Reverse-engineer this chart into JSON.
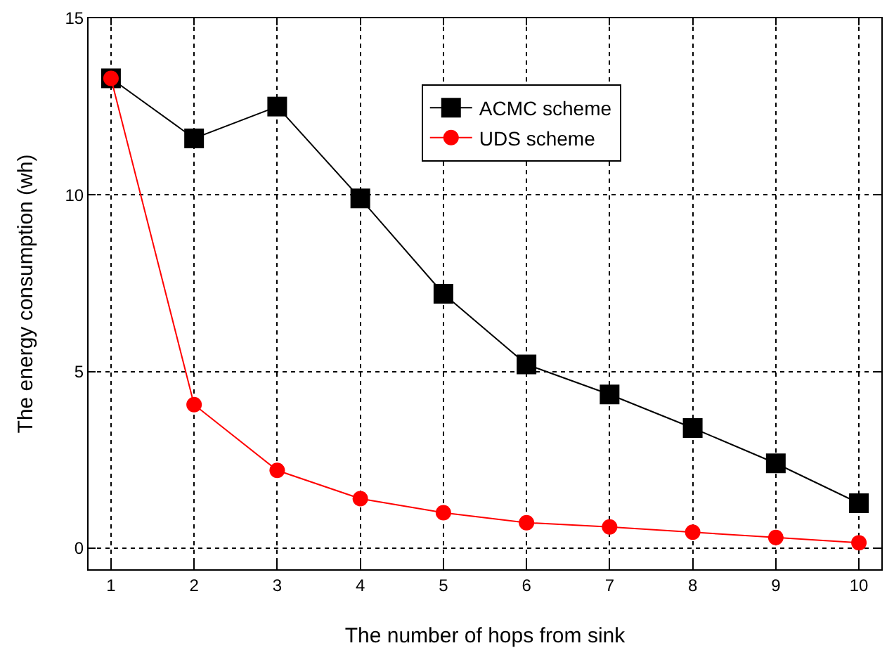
{
  "chart_data": {
    "type": "line",
    "xlabel": "The number of hops from sink",
    "ylabel": "The energy consumption (wh)",
    "x": [
      1,
      2,
      3,
      4,
      5,
      6,
      7,
      8,
      9,
      10
    ],
    "series": [
      {
        "name": "ACMC scheme",
        "color": "#000000",
        "marker": "square",
        "values": [
          13.3,
          11.6,
          12.5,
          9.9,
          7.2,
          5.2,
          4.35,
          3.4,
          2.4,
          1.27
        ]
      },
      {
        "name": "UDS scheme",
        "color": "#ff0000",
        "marker": "circle",
        "values": [
          13.3,
          4.06,
          2.2,
          1.4,
          1.0,
          0.72,
          0.6,
          0.45,
          0.3,
          0.15
        ]
      }
    ],
    "xlim": [
      0.73,
      10.27
    ],
    "xticks": [
      1,
      2,
      3,
      4,
      5,
      6,
      7,
      8,
      9,
      10
    ],
    "ylim": [
      -0.6,
      15
    ],
    "yticks": [
      0,
      5,
      10,
      15
    ],
    "grid": true,
    "legend": "top right",
    "line_style": "solid"
  }
}
